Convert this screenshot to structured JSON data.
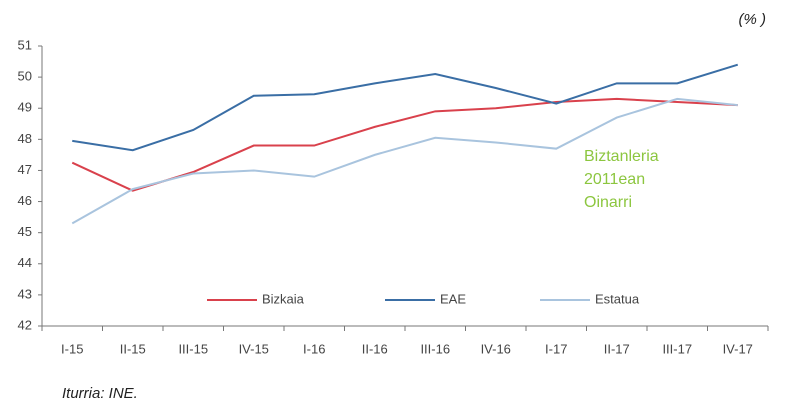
{
  "chart_data": {
    "type": "line",
    "unit_label": "(% )",
    "source": "Iturria: INE.",
    "annotation": [
      "Biztanleria",
      "2011ean",
      "Oinarri"
    ],
    "annotation_color": "#8cc63f",
    "categories": [
      "I-15",
      "II-15",
      "III-15",
      "IV-15",
      "I-16",
      "II-16",
      "III-16",
      "IV-16",
      "I-17",
      "II-17",
      "III-17",
      "IV-17"
    ],
    "series": [
      {
        "name": "Bizkaia",
        "color": "#d9414c",
        "values": [
          47.25,
          46.35,
          46.95,
          47.8,
          47.8,
          48.4,
          48.9,
          49.0,
          49.2,
          49.3,
          49.2,
          49.1
        ]
      },
      {
        "name": "EAE",
        "color": "#3a6ea5",
        "values": [
          47.95,
          47.65,
          48.3,
          49.4,
          49.45,
          49.8,
          50.1,
          49.65,
          49.15,
          49.8,
          49.8,
          50.4
        ]
      },
      {
        "name": "Estatua",
        "color": "#a9c4de",
        "values": [
          45.3,
          46.4,
          46.9,
          47.0,
          46.8,
          47.5,
          48.05,
          47.9,
          47.7,
          48.7,
          49.3,
          49.1
        ]
      }
    ],
    "ylim": [
      42,
      51
    ],
    "yticks": [
      42,
      43,
      44,
      45,
      46,
      47,
      48,
      49,
      50,
      51
    ],
    "grid": false,
    "legend": "bottom"
  }
}
